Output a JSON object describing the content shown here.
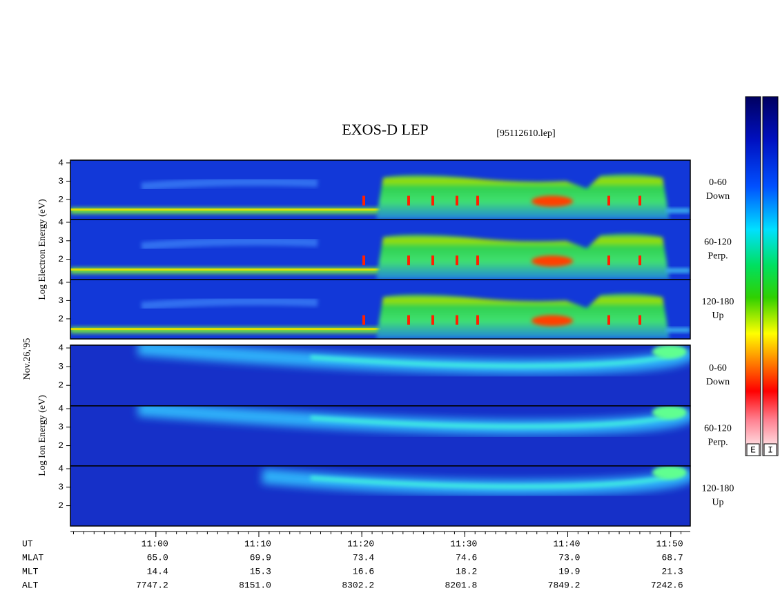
{
  "chart_data": {
    "type": "spectrogram",
    "title": "EXOS-D LEP",
    "subtitle": "[95112610.lep]",
    "date_label": "Nov.26,'95",
    "ylim": [
      0.9,
      4.15
    ],
    "yticks": [
      2,
      3,
      4
    ],
    "xlim": [
      51.7,
      111.9
    ],
    "xticks": [
      {
        "value": 60,
        "label": "11:00"
      },
      {
        "value": 70,
        "label": "11:10"
      },
      {
        "value": 80,
        "label": "11:20"
      },
      {
        "value": 90,
        "label": "11:30"
      },
      {
        "value": 100,
        "label": "11:40"
      },
      {
        "value": 110,
        "label": "11:50"
      }
    ],
    "groups": [
      {
        "ylabel": "Log  Electron  Energy (eV)",
        "panels": [
          {
            "label": "0-60",
            "sublabel": "Down"
          },
          {
            "label": "60-120",
            "sublabel": "Perp."
          },
          {
            "label": "120-180",
            "sublabel": "Up"
          }
        ]
      },
      {
        "ylabel": "Log  Ion  Energy (eV)",
        "panels": [
          {
            "label": "0-60",
            "sublabel": "Down"
          },
          {
            "label": "60-120",
            "sublabel": "Perp."
          },
          {
            "label": "120-180",
            "sublabel": "Up"
          }
        ]
      }
    ],
    "xlabel": "UT",
    "ephemeris": [
      {
        "name": "MLAT",
        "values": [
          "65.0",
          "69.9",
          "73.4",
          "74.6",
          "73.0",
          "68.7"
        ]
      },
      {
        "name": "MLT",
        "values": [
          "14.4",
          "15.3",
          "16.6",
          "18.2",
          "19.9",
          "21.3"
        ]
      },
      {
        "name": "ALT",
        "values": [
          "7747.2",
          "8151.0",
          "8302.2",
          "8201.8",
          "7849.2",
          "7242.6"
        ]
      }
    ],
    "colorbars": [
      "E",
      "I"
    ]
  }
}
